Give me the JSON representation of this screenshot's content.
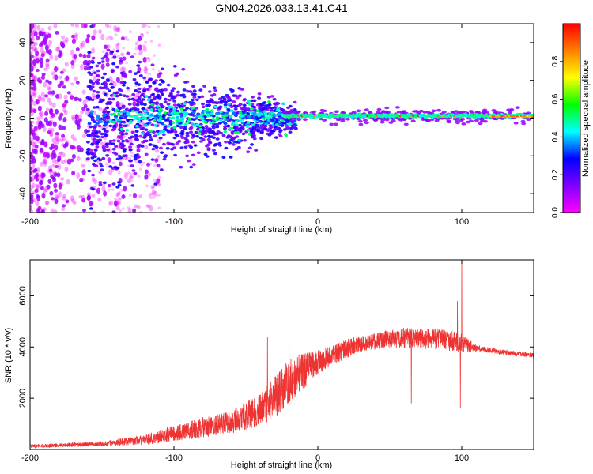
{
  "title": "GN04.2026.033.13.41.C41",
  "chart_data": [
    {
      "type": "heatmap",
      "name": "spectrogram",
      "xlabel": "Height of straight line (km)",
      "ylabel": "Frequency (Hz)",
      "xlim": [
        -200,
        150
      ],
      "ylim": [
        -50,
        50
      ],
      "xticks": [
        -200,
        -100,
        0,
        100
      ],
      "yticks": [
        -40,
        -20,
        0,
        20,
        40
      ],
      "colorbar": {
        "label": "Normalized spectral amplitude",
        "range": [
          0,
          1
        ],
        "ticks": [
          "0.0",
          "0.2",
          "0.4",
          "0.6",
          "0.8"
        ],
        "colors": [
          "#ff00ff",
          "#7f00ff",
          "#0000ff",
          "#00ffff",
          "#00ff00",
          "#ffff00",
          "#ff8000",
          "#ff0000"
        ]
      },
      "note": "Broadband noise at heights below about -110 km, energy concentrating toward 0 Hz with increasing height; a narrow high-amplitude line near 1 Hz from about -20 km upward."
    },
    {
      "type": "line",
      "name": "snr",
      "xlabel": "Height of straight line (km)",
      "ylabel": "SNR (10 * v/v)",
      "xlim": [
        -200,
        150
      ],
      "ylim": [
        0,
        7400
      ],
      "xticks": [
        -200,
        -100,
        0,
        100
      ],
      "yticks": [
        2000,
        4000,
        6000
      ],
      "line_color": "#ee3333",
      "profile_x": [
        -200,
        -150,
        -120,
        -100,
        -80,
        -60,
        -40,
        -30,
        -20,
        -10,
        0,
        10,
        20,
        30,
        40,
        50,
        60,
        70,
        80,
        90,
        95,
        100,
        110,
        130,
        150
      ],
      "profile_y": [
        100,
        180,
        300,
        500,
        700,
        900,
        1300,
        1700,
        2300,
        2800,
        3200,
        3500,
        3800,
        4000,
        4100,
        4200,
        4200,
        4150,
        4150,
        4100,
        4050,
        4000,
        3900,
        3750,
        3650
      ],
      "noise": [
        80,
        120,
        250,
        400,
        500,
        600,
        800,
        1000,
        1100,
        900,
        600,
        500,
        450,
        400,
        400,
        450,
        500,
        500,
        500,
        500,
        500,
        500,
        150,
        120,
        120
      ],
      "spikes": [
        {
          "x": 100,
          "y": 7400
        },
        {
          "x": 99,
          "y": 1600
        },
        {
          "x": 97,
          "y": 5800
        },
        {
          "x": 65,
          "y": 1800
        },
        {
          "x": -35,
          "y": 4400
        },
        {
          "x": -20,
          "y": 4200
        }
      ]
    }
  ]
}
